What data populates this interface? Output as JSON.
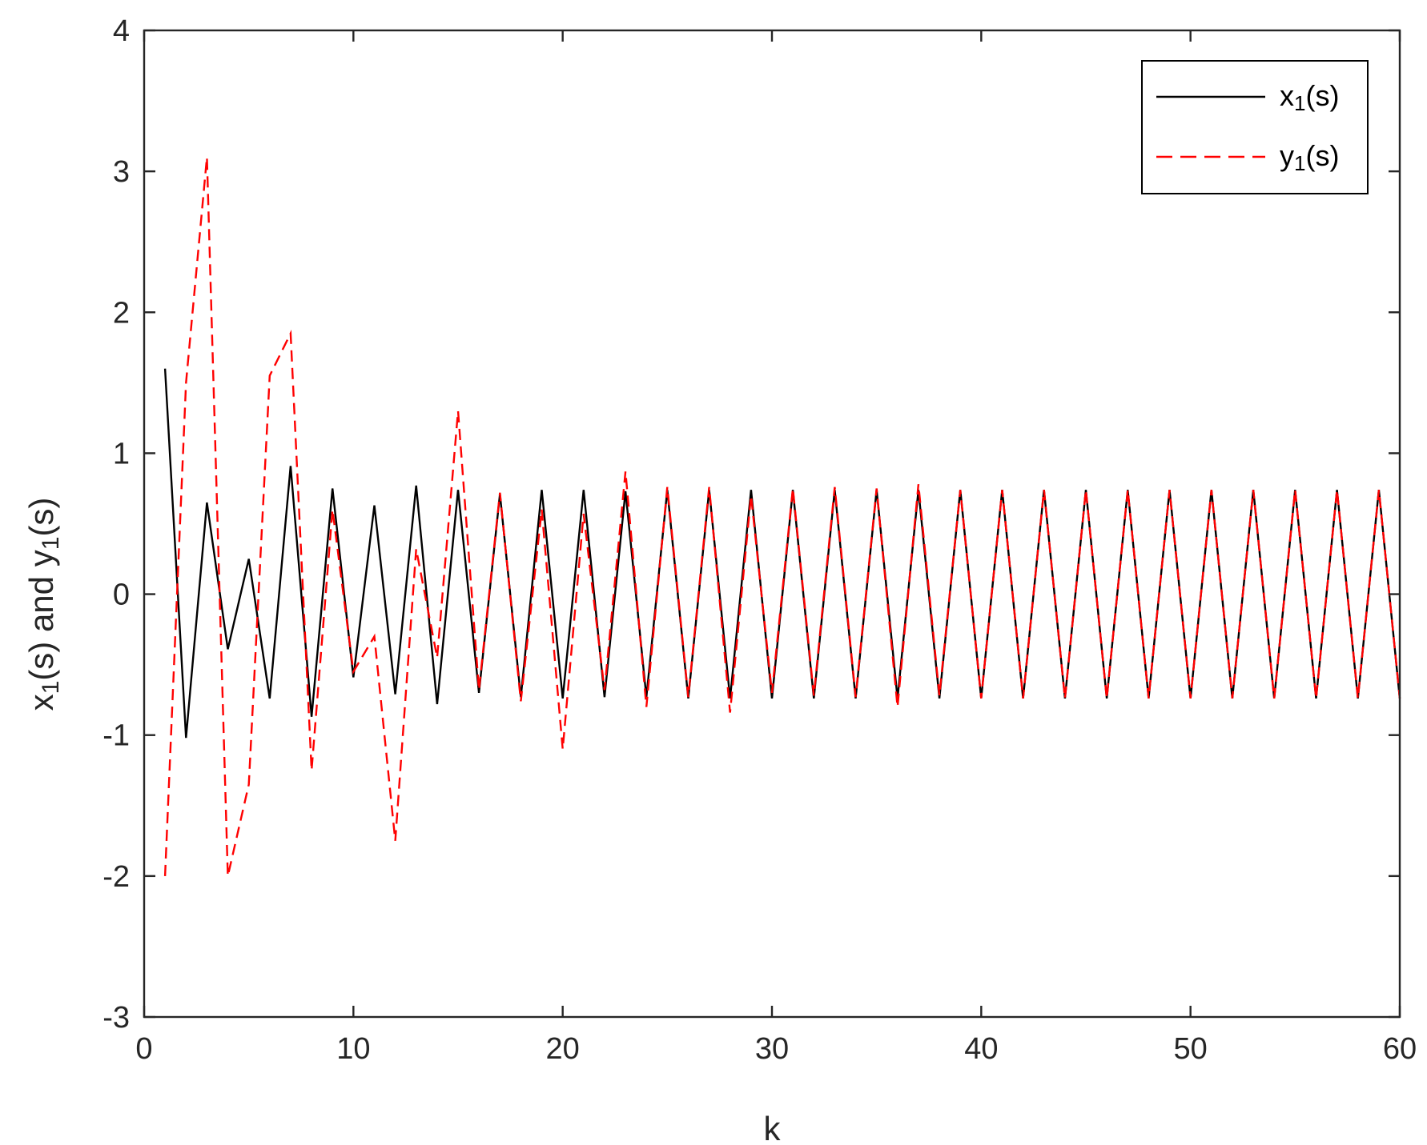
{
  "chart_data": {
    "type": "line",
    "xlabel": "k",
    "ylabel": {
      "base": "x",
      "sub": "1",
      "mid": "(s) and y",
      "sub2": "1",
      "end": "(s)"
    },
    "xlim": [
      0,
      60
    ],
    "ylim": [
      -3,
      4
    ],
    "xticks": [
      0,
      10,
      20,
      30,
      40,
      50,
      60
    ],
    "yticks": [
      -3,
      -2,
      -1,
      0,
      1,
      2,
      3,
      4
    ],
    "grid": false,
    "legend_position": "top-right",
    "x": [
      1,
      2,
      3,
      4,
      5,
      6,
      7,
      8,
      9,
      10,
      11,
      12,
      13,
      14,
      15,
      16,
      17,
      18,
      19,
      20,
      21,
      22,
      23,
      24,
      25,
      26,
      27,
      28,
      29,
      30,
      31,
      32,
      33,
      34,
      35,
      36,
      37,
      38,
      39,
      40,
      41,
      42,
      43,
      44,
      45,
      46,
      47,
      48,
      49,
      50,
      51,
      52,
      53,
      54,
      55,
      56,
      57,
      58,
      59,
      60
    ],
    "series": [
      {
        "name": {
          "base": "x",
          "sub": "1",
          "end": "(s)"
        },
        "color": "#000000",
        "style": "solid",
        "values": [
          1.6,
          -1.02,
          0.65,
          -0.39,
          0.25,
          -0.74,
          0.91,
          -0.87,
          0.75,
          -0.59,
          0.63,
          -0.71,
          0.77,
          -0.78,
          0.74,
          -0.7,
          0.71,
          -0.73,
          0.74,
          -0.74,
          0.74,
          -0.73,
          0.73,
          -0.73,
          0.74,
          -0.74,
          0.74,
          -0.74,
          0.74,
          -0.74,
          0.74,
          -0.74,
          0.74,
          -0.74,
          0.74,
          -0.74,
          0.74,
          -0.74,
          0.74,
          -0.74,
          0.74,
          -0.74,
          0.74,
          -0.74,
          0.74,
          -0.74,
          0.74,
          -0.74,
          0.74,
          -0.74,
          0.74,
          -0.74,
          0.74,
          -0.74,
          0.74,
          -0.74,
          0.74,
          -0.74,
          0.74,
          -0.74
        ]
      },
      {
        "name": {
          "base": "y",
          "sub": "1",
          "end": "(s)"
        },
        "color": "#ff0000",
        "style": "dashed",
        "values": [
          -2.0,
          1.5,
          3.1,
          -2.0,
          -1.35,
          1.55,
          1.85,
          -1.25,
          0.6,
          -0.55,
          -0.3,
          -1.75,
          0.32,
          -0.45,
          1.3,
          -0.68,
          0.72,
          -0.76,
          0.6,
          -1.1,
          0.57,
          -0.68,
          0.87,
          -0.8,
          0.76,
          -0.73,
          0.76,
          -0.84,
          0.7,
          -0.7,
          0.75,
          -0.72,
          0.76,
          -0.73,
          0.75,
          -0.8,
          0.78,
          -0.72,
          0.74,
          -0.74,
          0.74,
          -0.74,
          0.74,
          -0.74,
          0.74,
          -0.74,
          0.74,
          -0.74,
          0.74,
          -0.74,
          0.74,
          -0.74,
          0.74,
          -0.74,
          0.74,
          -0.74,
          0.74,
          -0.74,
          0.74,
          -0.74
        ]
      }
    ]
  }
}
